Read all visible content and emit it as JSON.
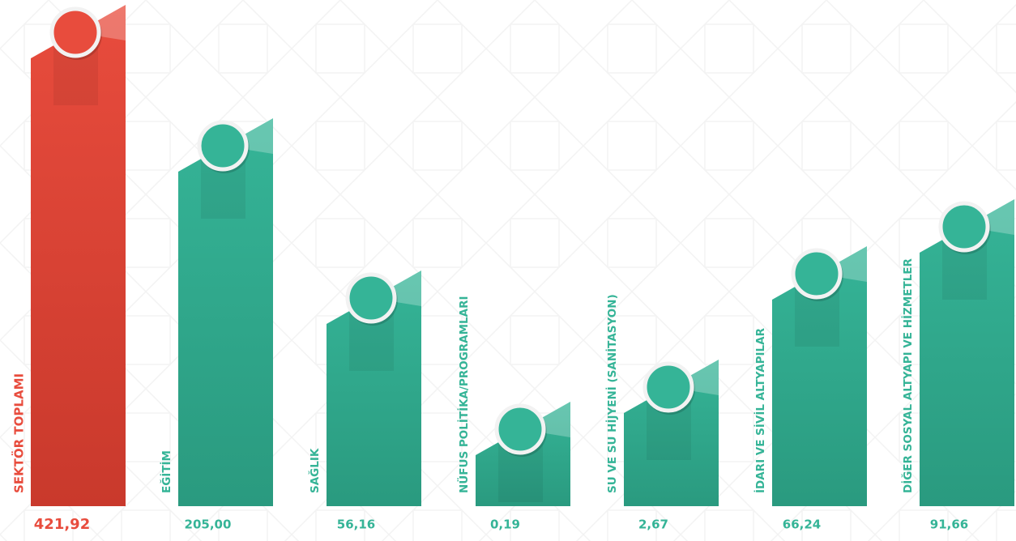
{
  "items": [
    {
      "label": "SEKTÖR TOPLAMI",
      "value": "421,92"
    },
    {
      "label": "EĞİTİM",
      "value": "205,00"
    },
    {
      "label": "SAĞLIK",
      "value": "56,16"
    },
    {
      "label": "NÜFUS POLİTİKA/PROGRAMLARI",
      "value": "0,19"
    },
    {
      "label": "SU VE SU HİJYENİ (SANİTASYON)",
      "value": "2,67"
    },
    {
      "label": "İDARI VE SİVİL ALTYAPILAR",
      "value": "66,24"
    },
    {
      "label": "DİĞER SOSYAL ALTYAPI VE HİZMETLER",
      "value": "91,66"
    }
  ]
}
